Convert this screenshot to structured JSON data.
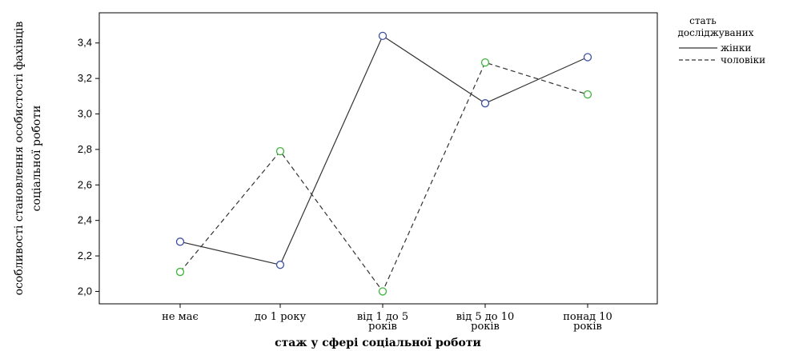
{
  "chart_data": {
    "type": "line",
    "xlabel": "стаж у сфері соціальної роботи",
    "ylabel_lines": [
      "особливості становлення особистості фахівців",
      "соціальної роботи"
    ],
    "categories": [
      [
        "не має"
      ],
      [
        "до 1 року"
      ],
      [
        "від 1 до 5",
        "років"
      ],
      [
        "від 5 до 10",
        "років"
      ],
      [
        "понад 10",
        "років"
      ]
    ],
    "ylim": [
      1.93,
      3.57
    ],
    "yticks": [
      2.0,
      2.2,
      2.4,
      2.6,
      2.8,
      3.0,
      3.2,
      3.4
    ],
    "ytick_labels": [
      "2,0",
      "2,2",
      "2,4",
      "2,6",
      "2,8",
      "3,0",
      "3,2",
      "3,4"
    ],
    "grid": false,
    "legend_position": "right",
    "legend_title_lines": [
      "стать",
      "досліджуваних"
    ],
    "series": [
      {
        "name": "жінки",
        "values": [
          2.28,
          2.15,
          3.44,
          3.06,
          3.32
        ],
        "line_style": "solid",
        "marker_color": "#3b4fa8",
        "line_color": "#333333"
      },
      {
        "name": "чоловіки",
        "values": [
          2.11,
          2.79,
          2.0,
          3.29,
          3.11
        ],
        "line_style": "dashed",
        "marker_color": "#3cb43c",
        "line_color": "#333333"
      }
    ]
  }
}
